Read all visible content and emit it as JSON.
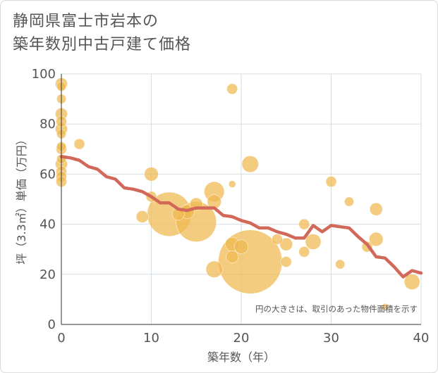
{
  "title": {
    "line1": "静岡県富士市岩本の",
    "line2": "築年数別中古戸建て価格"
  },
  "chart_data": {
    "type": "scatter",
    "xlabel": "築年数（年）",
    "ylabel": "坪（3.3㎡）単価（万円）",
    "xlim": [
      0,
      40
    ],
    "ylim": [
      0,
      100
    ],
    "xticks": [
      0,
      10,
      20,
      30,
      40
    ],
    "yticks": [
      0,
      20,
      40,
      60,
      80,
      100
    ],
    "grid": true,
    "note": "円の大きさは、取引のあった物件面積を示す",
    "colors": {
      "bubble": "#f0b94f",
      "trend": "#d2685a",
      "grid": "#d6dde2",
      "text": "#555555"
    },
    "bubbles": [
      {
        "x": 0,
        "y": 96,
        "size": 180
      },
      {
        "x": 0,
        "y": 95,
        "size": 110
      },
      {
        "x": 0,
        "y": 90,
        "size": 110
      },
      {
        "x": 0,
        "y": 84,
        "size": 180
      },
      {
        "x": 0,
        "y": 81,
        "size": 140
      },
      {
        "x": 0,
        "y": 78,
        "size": 180
      },
      {
        "x": 0,
        "y": 76,
        "size": 110
      },
      {
        "x": 0,
        "y": 71,
        "size": 110
      },
      {
        "x": 0,
        "y": 70,
        "size": 140
      },
      {
        "x": 0,
        "y": 66,
        "size": 110
      },
      {
        "x": 0,
        "y": 64,
        "size": 180
      },
      {
        "x": 0,
        "y": 61,
        "size": 140
      },
      {
        "x": 0,
        "y": 59,
        "size": 140
      },
      {
        "x": 0,
        "y": 57,
        "size": 140
      },
      {
        "x": 2,
        "y": 72,
        "size": 140
      },
      {
        "x": 10,
        "y": 60,
        "size": 240
      },
      {
        "x": 10,
        "y": 51,
        "size": 140
      },
      {
        "x": 9,
        "y": 43,
        "size": 180
      },
      {
        "x": 12,
        "y": 44,
        "size": 2400
      },
      {
        "x": 13,
        "y": 44,
        "size": 180
      },
      {
        "x": 14,
        "y": 45,
        "size": 240
      },
      {
        "x": 15,
        "y": 48,
        "size": 200
      },
      {
        "x": 15,
        "y": 41,
        "size": 2000
      },
      {
        "x": 17,
        "y": 53,
        "size": 500
      },
      {
        "x": 17,
        "y": 49,
        "size": 240
      },
      {
        "x": 17,
        "y": 22,
        "size": 340
      },
      {
        "x": 19,
        "y": 94,
        "size": 140
      },
      {
        "x": 19,
        "y": 56,
        "size": 60
      },
      {
        "x": 19,
        "y": 32,
        "size": 240
      },
      {
        "x": 19,
        "y": 27,
        "size": 180
      },
      {
        "x": 20,
        "y": 31,
        "size": 240
      },
      {
        "x": 21,
        "y": 64,
        "size": 340
      },
      {
        "x": 21,
        "y": 25,
        "size": 5000
      },
      {
        "x": 24,
        "y": 34,
        "size": 140
      },
      {
        "x": 25,
        "y": 32,
        "size": 200
      },
      {
        "x": 25,
        "y": 25,
        "size": 140
      },
      {
        "x": 27,
        "y": 40,
        "size": 140
      },
      {
        "x": 27,
        "y": 29,
        "size": 140
      },
      {
        "x": 28,
        "y": 33,
        "size": 300
      },
      {
        "x": 30,
        "y": 57,
        "size": 140
      },
      {
        "x": 31,
        "y": 24,
        "size": 110
      },
      {
        "x": 32,
        "y": 49,
        "size": 110
      },
      {
        "x": 34,
        "y": 31,
        "size": 140
      },
      {
        "x": 35,
        "y": 46,
        "size": 200
      },
      {
        "x": 35,
        "y": 34,
        "size": 240
      },
      {
        "x": 36,
        "y": 7,
        "size": 60
      },
      {
        "x": 39,
        "y": 17,
        "size": 300
      }
    ],
    "series": [
      {
        "x": [
          0,
          1,
          2,
          3,
          4,
          5,
          6,
          7,
          8,
          9,
          10,
          11,
          12,
          13,
          14,
          15,
          16,
          17,
          18,
          19,
          20,
          21,
          22,
          23,
          24,
          25,
          26,
          27,
          28,
          29,
          30,
          31,
          32,
          33,
          34,
          35,
          36,
          37,
          38,
          39,
          40
        ],
        "y": [
          67,
          66.5,
          65.5,
          63,
          62,
          59,
          58,
          54.5,
          54,
          53,
          51,
          48.5,
          48.5,
          46,
          45.5,
          46.5,
          46.5,
          46.5,
          43.5,
          43,
          41.5,
          40.5,
          38.5,
          38.5,
          37,
          36,
          34.5,
          34.5,
          39.5,
          37,
          39.5,
          39,
          38.5,
          35,
          32,
          27,
          26.5,
          23,
          19,
          21.5,
          20.5
        ]
      }
    ]
  }
}
